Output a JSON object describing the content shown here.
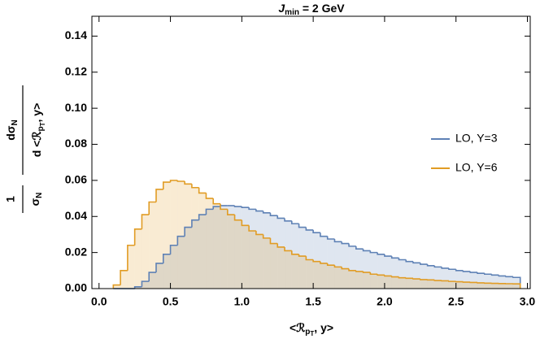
{
  "chart_data": {
    "type": "histogram",
    "title": {
      "main": "J",
      "sub": "min",
      "rest": " = 2 GeV"
    },
    "xlabel": {
      "before": "<ℛ",
      "sub": "p",
      "subsub": "T",
      "after": ", y>"
    },
    "ylabel": {
      "one": "1",
      "sigma": "σ",
      "sigma_sub": "N",
      "d_sigma": "dσ",
      "d_sigma_sub": "N",
      "d_before": "d <ℛ",
      "d_sub": "p",
      "d_subsub": "T",
      "d_after": ", y>"
    },
    "bins": [
      0.1,
      0.15,
      0.2,
      0.25,
      0.3,
      0.35,
      0.4,
      0.45,
      0.5,
      0.55,
      0.6,
      0.65,
      0.7,
      0.75,
      0.8,
      0.85,
      0.9,
      0.95,
      1.0,
      1.05,
      1.1,
      1.15,
      1.2,
      1.25,
      1.3,
      1.35,
      1.4,
      1.45,
      1.5,
      1.55,
      1.6,
      1.65,
      1.7,
      1.75,
      1.8,
      1.85,
      1.9,
      1.95,
      2.0,
      2.05,
      2.1,
      2.15,
      2.2,
      2.25,
      2.3,
      2.35,
      2.4,
      2.45,
      2.5,
      2.55,
      2.6,
      2.65,
      2.7,
      2.75,
      2.8,
      2.85,
      2.9,
      2.95
    ],
    "series": [
      {
        "name": "LO, Y=3",
        "color": "#5e81b5",
        "values": [
          0,
          0,
          0,
          0.001,
          0.004,
          0.009,
          0.014,
          0.019,
          0.024,
          0.029,
          0.034,
          0.038,
          0.041,
          0.044,
          0.0455,
          0.046,
          0.046,
          0.0455,
          0.045,
          0.044,
          0.043,
          0.042,
          0.0405,
          0.039,
          0.0375,
          0.036,
          0.034,
          0.0325,
          0.031,
          0.029,
          0.0275,
          0.026,
          0.025,
          0.0235,
          0.022,
          0.021,
          0.02,
          0.019,
          0.018,
          0.017,
          0.016,
          0.015,
          0.0143,
          0.0135,
          0.0127,
          0.012,
          0.0113,
          0.0107,
          0.01,
          0.0095,
          0.009,
          0.0085,
          0.008,
          0.0075,
          0.007,
          0.0066,
          0.0062
        ]
      },
      {
        "name": "LO, Y=6",
        "color": "#e19c24",
        "values": [
          0.002,
          0.01,
          0.024,
          0.033,
          0.041,
          0.048,
          0.055,
          0.059,
          0.06,
          0.0595,
          0.058,
          0.056,
          0.053,
          0.05,
          0.047,
          0.044,
          0.041,
          0.038,
          0.035,
          0.032,
          0.03,
          0.028,
          0.025,
          0.023,
          0.021,
          0.019,
          0.018,
          0.016,
          0.015,
          0.014,
          0.013,
          0.012,
          0.011,
          0.01,
          0.0095,
          0.009,
          0.008,
          0.0075,
          0.007,
          0.0065,
          0.006,
          0.0057,
          0.0054,
          0.005,
          0.0048,
          0.0045,
          0.0043,
          0.004,
          0.0038,
          0.0036,
          0.0034,
          0.0032,
          0.003,
          0.0029,
          0.0028,
          0.0027,
          0.0026
        ]
      }
    ],
    "xlim": [
      -0.05,
      3.02
    ],
    "ylim": [
      0,
      0.151
    ],
    "xticks": [
      {
        "value": 0,
        "label": "0.0"
      },
      {
        "value": 0.5,
        "label": "0.5"
      },
      {
        "value": 1,
        "label": "1.0"
      },
      {
        "value": 1.5,
        "label": "1.5"
      },
      {
        "value": 2,
        "label": "2.0"
      },
      {
        "value": 2.5,
        "label": "2.5"
      },
      {
        "value": 3,
        "label": "3.0"
      }
    ],
    "yticks": [
      {
        "value": 0,
        "label": "0.00"
      },
      {
        "value": 0.02,
        "label": "0.02"
      },
      {
        "value": 0.04,
        "label": "0.04"
      },
      {
        "value": 0.06,
        "label": "0.06"
      },
      {
        "value": 0.08,
        "label": "0.08"
      },
      {
        "value": 0.1,
        "label": "0.10"
      },
      {
        "value": 0.12,
        "label": "0.12"
      },
      {
        "value": 0.14,
        "label": "0.14"
      }
    ],
    "fill_opacity": 0.2,
    "legend": "right"
  }
}
